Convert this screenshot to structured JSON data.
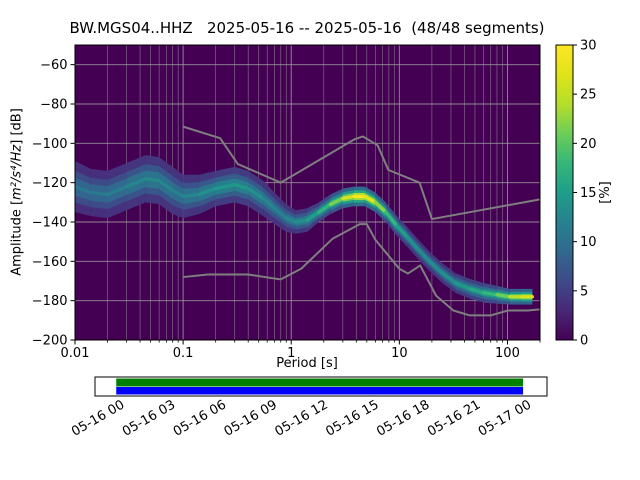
{
  "chart_data": {
    "type": "heatmap",
    "subtype": "ppsd-probabilistic-power-spectral-density",
    "title": "BW.MGS04..HHZ   2025-05-16 -- 2025-05-16  (48/48 segments)",
    "xlabel": "Period [s]",
    "ylabel": "Amplitude [m²/s⁴/Hz] [dB]",
    "ylabel_parts": {
      "prefix": "Amplitude [",
      "math": "m²/s⁴/Hz",
      "suffix": "] [dB]"
    },
    "xscale": "log",
    "xlim": [
      0.01,
      200
    ],
    "ylim": [
      -200,
      -50
    ],
    "xticks": [
      0.01,
      0.1,
      1,
      10,
      100
    ],
    "xtick_labels": [
      "0.01",
      "0.1",
      "1",
      "10",
      "100"
    ],
    "yticks": [
      -60,
      -80,
      -100,
      -120,
      -140,
      -160,
      -180,
      -200
    ],
    "grid": true,
    "background_color": "#440154",
    "grid_color": "#9b9b9b",
    "colorbar": {
      "label": "[%]",
      "min": 0,
      "max": 30,
      "ticks": [
        0,
        5,
        10,
        15,
        20,
        25,
        30
      ]
    },
    "colormap": [
      [
        0.0,
        "#440154"
      ],
      [
        0.1,
        "#482878"
      ],
      [
        0.2,
        "#3e4a89"
      ],
      [
        0.3,
        "#31688e"
      ],
      [
        0.4,
        "#26828e"
      ],
      [
        0.5,
        "#1f9e89"
      ],
      [
        0.6,
        "#35b779"
      ],
      [
        0.7,
        "#6dcd59"
      ],
      [
        0.8,
        "#b5de2b"
      ],
      [
        0.9,
        "#dfe318"
      ],
      [
        1.0,
        "#fde725"
      ]
    ],
    "psd_mode_points_format": [
      "period_s",
      "amplitude_db",
      "probability_percent",
      "spread_db"
    ],
    "psd_mode_points": [
      [
        0.01,
        -122,
        11,
        13
      ],
      [
        0.014,
        -125,
        11,
        12
      ],
      [
        0.02,
        -126,
        11,
        12
      ],
      [
        0.03,
        -122,
        12,
        12
      ],
      [
        0.045,
        -118,
        13,
        12
      ],
      [
        0.06,
        -119,
        13,
        12
      ],
      [
        0.08,
        -124,
        12,
        12
      ],
      [
        0.1,
        -127,
        12,
        11
      ],
      [
        0.14,
        -126,
        13,
        10
      ],
      [
        0.2,
        -123,
        14,
        9
      ],
      [
        0.3,
        -121,
        15,
        9
      ],
      [
        0.4,
        -123,
        14,
        9
      ],
      [
        0.55,
        -128,
        13,
        9
      ],
      [
        0.7,
        -133,
        12,
        8
      ],
      [
        0.9,
        -138,
        12,
        7
      ],
      [
        1.1,
        -140,
        13,
        6
      ],
      [
        1.4,
        -139,
        14,
        6
      ],
      [
        1.8,
        -135,
        16,
        5
      ],
      [
        2.3,
        -131,
        19,
        5
      ],
      [
        3.0,
        -128,
        24,
        5
      ],
      [
        3.8,
        -127,
        29,
        5
      ],
      [
        4.8,
        -127,
        30,
        5
      ],
      [
        6.0,
        -130,
        25,
        5
      ],
      [
        7.5,
        -135,
        20,
        5
      ],
      [
        9.5,
        -142,
        16,
        5
      ],
      [
        12,
        -148,
        14,
        5
      ],
      [
        15,
        -154,
        13,
        5
      ],
      [
        19,
        -160,
        13,
        5
      ],
      [
        25,
        -166,
        13,
        5
      ],
      [
        33,
        -171,
        14,
        5
      ],
      [
        45,
        -174,
        15,
        5
      ],
      [
        60,
        -176,
        17,
        5
      ],
      [
        80,
        -177,
        19,
        4.5
      ],
      [
        105,
        -178,
        23,
        4
      ],
      [
        135,
        -178,
        26,
        4
      ],
      [
        170,
        -178,
        27,
        4
      ]
    ],
    "noise_models": {
      "color": "#7f7f7f",
      "high": [
        [
          0.1,
          -91.5
        ],
        [
          0.22,
          -97.4
        ],
        [
          0.32,
          -110.5
        ],
        [
          0.8,
          -120.0
        ],
        [
          3.8,
          -98.1
        ],
        [
          4.6,
          -96.5
        ],
        [
          6.3,
          -101.0
        ],
        [
          7.9,
          -113.5
        ],
        [
          15.4,
          -120.0
        ],
        [
          20.0,
          -138.5
        ],
        [
          200,
          -128.5
        ]
      ],
      "low": [
        [
          0.1,
          -168.0
        ],
        [
          0.17,
          -166.7
        ],
        [
          0.4,
          -166.7
        ],
        [
          0.8,
          -169.2
        ],
        [
          1.24,
          -163.7
        ],
        [
          2.4,
          -148.6
        ],
        [
          4.3,
          -141.1
        ],
        [
          5.0,
          -141.1
        ],
        [
          6.0,
          -149.0
        ],
        [
          10.0,
          -163.8
        ],
        [
          12.0,
          -166.2
        ],
        [
          15.6,
          -162.1
        ],
        [
          21.9,
          -177.5
        ],
        [
          31.6,
          -185.0
        ],
        [
          45.0,
          -187.5
        ],
        [
          70.0,
          -187.5
        ],
        [
          101.0,
          -185.0
        ],
        [
          154.0,
          -185.0
        ],
        [
          200,
          -184.4
        ]
      ]
    }
  },
  "timeline": {
    "tick_labels": [
      "05-16 00",
      "05-16 03",
      "05-16 06",
      "05-16 09",
      "05-16 12",
      "05-16 15",
      "05-16 18",
      "05-16 21",
      "05-17 00"
    ],
    "box_color": "#ffffff",
    "border_color": "#000000",
    "used_color": "#008000",
    "data_color": "#0000ff",
    "start_frac": 0.047,
    "end_frac": 0.947
  }
}
